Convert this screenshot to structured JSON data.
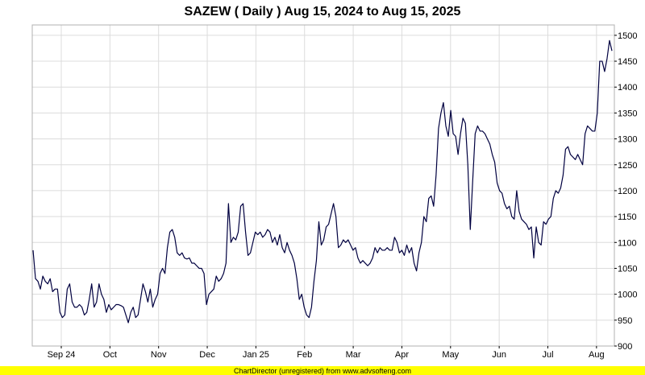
{
  "chart_data": {
    "type": "line",
    "title": "SAZEW ( Daily ) Aug 15, 2024 to Aug 15, 2025",
    "xlabel": "",
    "ylabel": "",
    "x_tick_labels": [
      "Sep 24",
      "Oct",
      "Nov",
      "Dec",
      "Jan 25",
      "Feb",
      "Mar",
      "Apr",
      "May",
      "Jun",
      "Jul",
      "Aug"
    ],
    "y_ticks": [
      900,
      950,
      1000,
      1050,
      1100,
      1150,
      1200,
      1250,
      1300,
      1350,
      1400,
      1450,
      1500
    ],
    "ylim": [
      900,
      1520
    ],
    "grid": true,
    "y_axis_side": "right",
    "series": [
      {
        "color": "#000040",
        "values": [
          1085,
          1030,
          1025,
          1010,
          1035,
          1025,
          1020,
          1030,
          1005,
          1010,
          1010,
          965,
          955,
          960,
          1010,
          1020,
          985,
          975,
          975,
          980,
          975,
          960,
          965,
          990,
          1020,
          975,
          985,
          1020,
          1000,
          990,
          965,
          980,
          970,
          975,
          980,
          980,
          978,
          975,
          960,
          945,
          965,
          975,
          955,
          960,
          990,
          1020,
          1005,
          985,
          1010,
          975,
          990,
          1000,
          1040,
          1050,
          1040,
          1090,
          1120,
          1125,
          1110,
          1080,
          1075,
          1080,
          1070,
          1068,
          1070,
          1060,
          1060,
          1055,
          1050,
          1050,
          1040,
          980,
          1000,
          1005,
          1010,
          1035,
          1025,
          1030,
          1040,
          1060,
          1175,
          1100,
          1110,
          1105,
          1120,
          1170,
          1175,
          1120,
          1075,
          1080,
          1100,
          1120,
          1115,
          1120,
          1110,
          1115,
          1125,
          1120,
          1100,
          1110,
          1095,
          1115,
          1090,
          1080,
          1100,
          1085,
          1075,
          1060,
          1030,
          990,
          1000,
          975,
          960,
          955,
          975,
          1025,
          1065,
          1140,
          1095,
          1105,
          1130,
          1135,
          1155,
          1175,
          1150,
          1090,
          1095,
          1105,
          1100,
          1105,
          1095,
          1085,
          1090,
          1070,
          1060,
          1065,
          1060,
          1055,
          1060,
          1070,
          1090,
          1080,
          1090,
          1085,
          1085,
          1090,
          1085,
          1085,
          1110,
          1100,
          1080,
          1085,
          1075,
          1095,
          1080,
          1090,
          1060,
          1045,
          1080,
          1100,
          1150,
          1140,
          1185,
          1190,
          1170,
          1230,
          1320,
          1350,
          1370,
          1325,
          1305,
          1355,
          1310,
          1305,
          1270,
          1310,
          1340,
          1330,
          1250,
          1125,
          1220,
          1310,
          1325,
          1315,
          1315,
          1310,
          1300,
          1290,
          1270,
          1255,
          1215,
          1200,
          1195,
          1175,
          1165,
          1170,
          1150,
          1145,
          1200,
          1160,
          1145,
          1140,
          1135,
          1125,
          1130,
          1070,
          1130,
          1100,
          1095,
          1140,
          1135,
          1145,
          1150,
          1185,
          1200,
          1195,
          1205,
          1230,
          1280,
          1285,
          1270,
          1265,
          1260,
          1270,
          1260,
          1250,
          1310,
          1325,
          1320,
          1315,
          1315,
          1350,
          1450,
          1450,
          1430,
          1455,
          1490,
          1470
        ]
      }
    ]
  },
  "footer": {
    "text": "ChartDirector (unregistered) from www.advsofteng.com",
    "background": "#ffff00"
  }
}
